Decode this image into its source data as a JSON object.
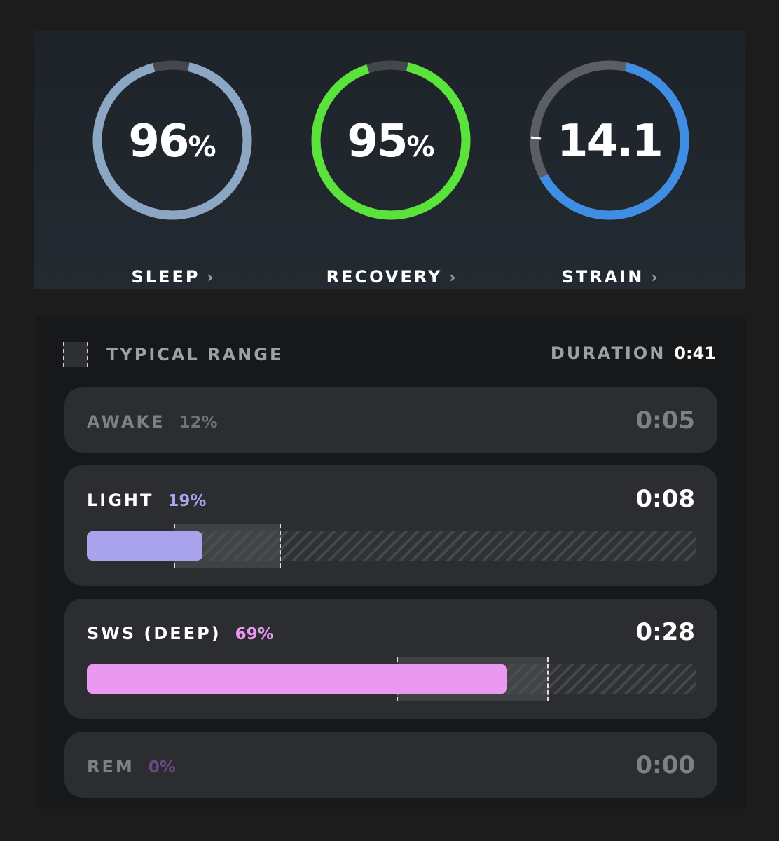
{
  "dials": [
    {
      "value": "96",
      "unit": "%",
      "label": "SLEEP",
      "chevron": "›",
      "fraction": 0.96,
      "color": "#8ba7c3",
      "icon": "chevron-right-icon"
    },
    {
      "value": "95",
      "unit": "%",
      "label": "RECOVERY",
      "chevron": "›",
      "fraction": 0.95,
      "color": "#5ae33b",
      "icon": "chevron-right-icon"
    },
    {
      "value": "14.1",
      "unit": "",
      "label": "STRAIN",
      "chevron": "›",
      "fraction": 0.67,
      "color": "#3f8ee3",
      "icon": "chevron-right-icon"
    }
  ],
  "legend": {
    "label": "TYPICAL RANGE"
  },
  "duration": {
    "label": "DURATION",
    "value": "0:41"
  },
  "stages": [
    {
      "name": "AWAKE",
      "percent": "12%",
      "time": "0:05",
      "percent_color": "#6f7276",
      "state": "dim"
    },
    {
      "name": "LIGHT",
      "percent": "19%",
      "time": "0:08",
      "percent_color": "#a9a3ee",
      "fill_color": "#a9a3ee",
      "fill_fraction": 0.19,
      "range": [
        0.142,
        0.318
      ],
      "state": "active"
    },
    {
      "name": "SWS (DEEP)",
      "percent": "69%",
      "time": "0:28",
      "percent_color": "#eb98f1",
      "fill_color": "#eb98f1",
      "fill_fraction": 0.69,
      "range": [
        0.508,
        0.757
      ],
      "state": "active"
    },
    {
      "name": "REM",
      "percent": "0%",
      "time": "0:00",
      "percent_color": "#6a4b86",
      "state": "dim"
    }
  ],
  "colors": {
    "background": "#1c1c1c",
    "track_gray": "#44484c"
  }
}
